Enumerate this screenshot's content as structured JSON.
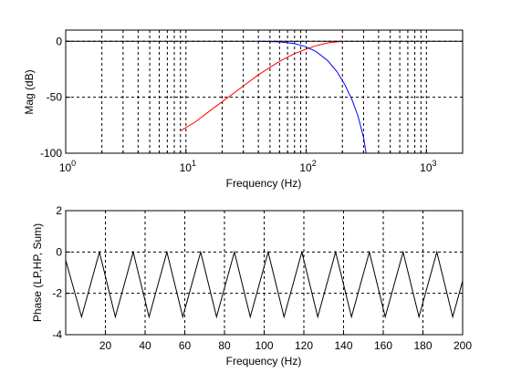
{
  "chart_data": [
    {
      "type": "line",
      "xscale": "log",
      "xlim": [
        1,
        2000
      ],
      "ylim": [
        -100,
        10
      ],
      "xlabel": "Frequency (Hz)",
      "ylabel": "Mag (dB)",
      "x_major_ticks": [
        1,
        10,
        100,
        1000
      ],
      "x_major_tick_labels": [
        {
          "base": "10",
          "exp": "0"
        },
        {
          "base": "10",
          "exp": "1"
        },
        {
          "base": "10",
          "exp": "2"
        },
        {
          "base": "10",
          "exp": "3"
        }
      ],
      "y_ticks": [
        -100,
        -50,
        0
      ],
      "y_tick_labels": [
        "-100",
        "-50",
        "0"
      ],
      "grid": true,
      "series": [
        {
          "color": "#ff0000",
          "x": [
            9,
            12,
            15,
            20,
            30,
            40,
            60,
            80,
            100,
            120,
            150,
            200
          ],
          "y": [
            -80,
            -72,
            -64,
            -54,
            -40,
            -30,
            -18,
            -11,
            -7,
            -4,
            -1.5,
            0
          ]
        },
        {
          "color": "#0000ff",
          "x": [
            40,
            60,
            80,
            100,
            120,
            150,
            180,
            210,
            240,
            270,
            300,
            315
          ],
          "y": [
            0,
            -0.5,
            -2,
            -5,
            -9,
            -17,
            -27,
            -39,
            -52,
            -67,
            -86,
            -100
          ]
        },
        {
          "color": "#000000",
          "x": [
            1,
            2000
          ],
          "y": [
            0,
            0
          ]
        }
      ]
    },
    {
      "type": "line",
      "xlim": [
        0,
        200
      ],
      "ylim": [
        -4,
        2
      ],
      "xlabel": "Frequency (Hz)",
      "ylabel": "Phase (LP,HP, Sum)",
      "x_ticks": [
        20,
        40,
        60,
        80,
        100,
        120,
        140,
        160,
        180,
        200
      ],
      "x_tick_labels": [
        "20",
        "40",
        "60",
        "80",
        "100",
        "120",
        "140",
        "160",
        "180",
        "200"
      ],
      "y_ticks": [
        -4,
        -2,
        0,
        2
      ],
      "y_tick_labels": [
        "-4",
        "-2",
        "0",
        "2"
      ],
      "grid": true,
      "series": [
        {
          "color": "#000000",
          "x": [
            0,
            8,
            17,
            25,
            34,
            42,
            51,
            59,
            68,
            76,
            85,
            93,
            102,
            110,
            119,
            127,
            136,
            144,
            153,
            161,
            170,
            178,
            187,
            195,
            200
          ],
          "y": [
            -0.4,
            -3.14,
            0,
            -3.14,
            0,
            -3.14,
            0,
            -3.14,
            0,
            -3.14,
            0,
            -3.14,
            0,
            -3.14,
            0,
            -3.14,
            0,
            -3.14,
            0,
            -3.14,
            0,
            -3.14,
            0,
            -3.14,
            -1.4
          ]
        }
      ]
    }
  ]
}
